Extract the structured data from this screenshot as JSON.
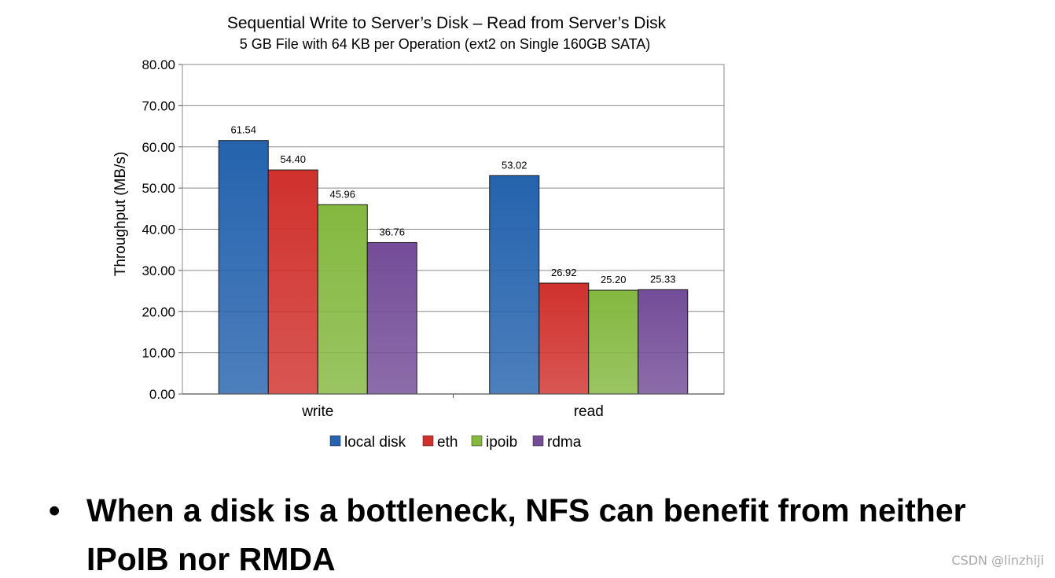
{
  "chart_data": {
    "type": "bar",
    "title": "Sequential Write to Server’s Disk –  Read from Server’s Disk",
    "subtitle": "5 GB File with 64 KB per Operation (ext2 on Single 160GB SATA)",
    "xlabel": "",
    "ylabel": "Throughput (MB/s)",
    "ylim": [
      0,
      80
    ],
    "yticks": [
      "0.00",
      "10.00",
      "20.00",
      "30.00",
      "40.00",
      "50.00",
      "60.00",
      "70.00",
      "80.00"
    ],
    "categories": [
      "write",
      "read"
    ],
    "grid": true,
    "legend_position": "bottom",
    "series": [
      {
        "name": "local disk",
        "color": "#2563ae",
        "values": [
          61.54,
          53.02
        ],
        "labels": [
          "61.54",
          "53.02"
        ]
      },
      {
        "name": "eth",
        "color": "#d0312d",
        "values": [
          54.4,
          26.92
        ],
        "labels": [
          "54.40",
          "26.92"
        ]
      },
      {
        "name": "ipoib",
        "color": "#84b840",
        "values": [
          45.96,
          25.2
        ],
        "labels": [
          "45.96",
          "25.20"
        ]
      },
      {
        "name": "rdma",
        "color": "#744c98",
        "values": [
          36.76,
          25.33
        ],
        "labels": [
          "36.76",
          "25.33"
        ]
      }
    ]
  },
  "bullet": {
    "symbol": "•",
    "line1": "When a disk is a bottleneck, NFS can benefit from neither",
    "line2": "IPoIB nor RMDA"
  },
  "watermark": "CSDN @linzhiji"
}
